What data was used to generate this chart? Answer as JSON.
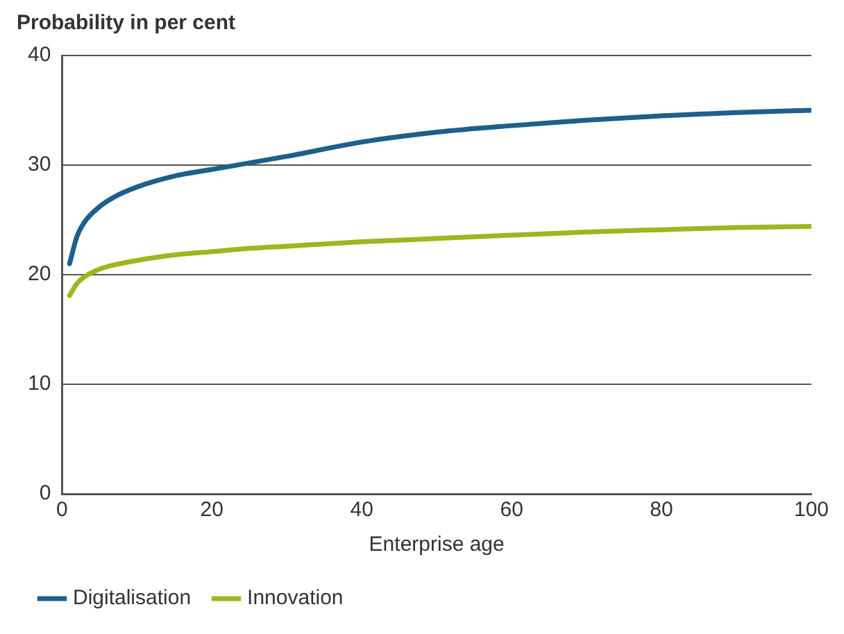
{
  "chart_data": {
    "type": "line",
    "ylabel": "Probability in per cent",
    "xlabel": "Enterprise age",
    "xlim": [
      0,
      100
    ],
    "xticks": [
      0,
      20,
      40,
      60,
      80,
      100
    ],
    "ylim": [
      0,
      40
    ],
    "yticks": [
      0,
      10,
      20,
      30,
      40
    ],
    "grid": "y",
    "legend": "bottom left",
    "marker": "none",
    "line_style": "solid",
    "series": [
      {
        "name": "Digitalisation",
        "color": "#1f5f8b",
        "x": [
          1,
          2,
          3,
          5,
          7,
          10,
          15,
          20,
          25,
          30,
          40,
          50,
          60,
          70,
          80,
          90,
          100
        ],
        "values": [
          21,
          23.5,
          24.8,
          26.2,
          27.1,
          28,
          29,
          29.6,
          30.2,
          30.8,
          32.1,
          33,
          33.6,
          34.1,
          34.5,
          34.8,
          35
        ]
      },
      {
        "name": "Innovation",
        "color": "#a2b41e",
        "x": [
          1,
          2,
          3,
          5,
          7,
          10,
          15,
          20,
          25,
          30,
          40,
          50,
          60,
          70,
          80,
          90,
          100
        ],
        "values": [
          18.1,
          19.2,
          19.8,
          20.5,
          20.9,
          21.3,
          21.8,
          22.1,
          22.4,
          22.6,
          23,
          23.3,
          23.6,
          23.9,
          24.1,
          24.3,
          24.4
        ]
      }
    ]
  }
}
